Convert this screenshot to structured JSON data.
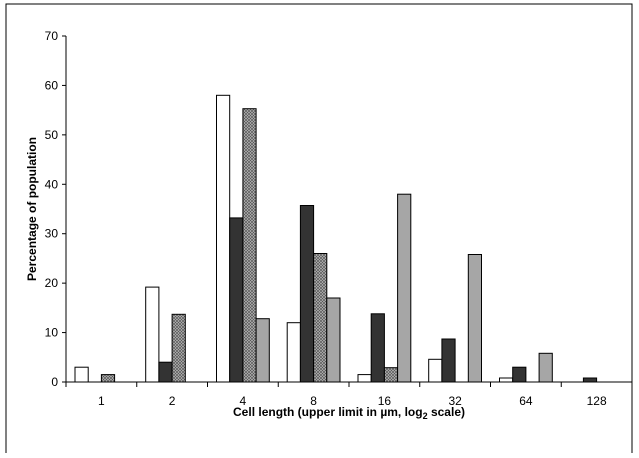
{
  "chart_data": {
    "type": "bar",
    "categories": [
      "1",
      "2",
      "4",
      "8",
      "16",
      "32",
      "64",
      "128"
    ],
    "series": [
      {
        "values": [
          3.0,
          19.2,
          58.0,
          12.0,
          1.5,
          4.6,
          0.8,
          0.0
        ],
        "color": "#ffffff",
        "pattern": "none"
      },
      {
        "values": [
          0.0,
          4.0,
          33.2,
          35.7,
          13.8,
          8.7,
          3.0,
          0.8
        ],
        "color": "#333333",
        "pattern": "none"
      },
      {
        "values": [
          1.5,
          13.7,
          55.3,
          26.0,
          2.9,
          0.0,
          0.0,
          0.0
        ],
        "color": "#999999",
        "pattern": "crosshatch"
      },
      {
        "values": [
          0.0,
          0.0,
          12.8,
          17.0,
          38.0,
          25.8,
          5.8,
          0.0
        ],
        "color": "#a6a6a6",
        "pattern": "none"
      }
    ],
    "ylabel": "Percentage of population",
    "xlabel_before_sub": "Cell length (upper limit in µm, log",
    "xlabel_sub": "2",
    "xlabel_after_sub": " scale)",
    "ylim": [
      0,
      70
    ],
    "yticks": [
      "0",
      "10",
      "20",
      "30",
      "40",
      "50",
      "60",
      "70"
    ],
    "grid": false,
    "legend": "none"
  }
}
